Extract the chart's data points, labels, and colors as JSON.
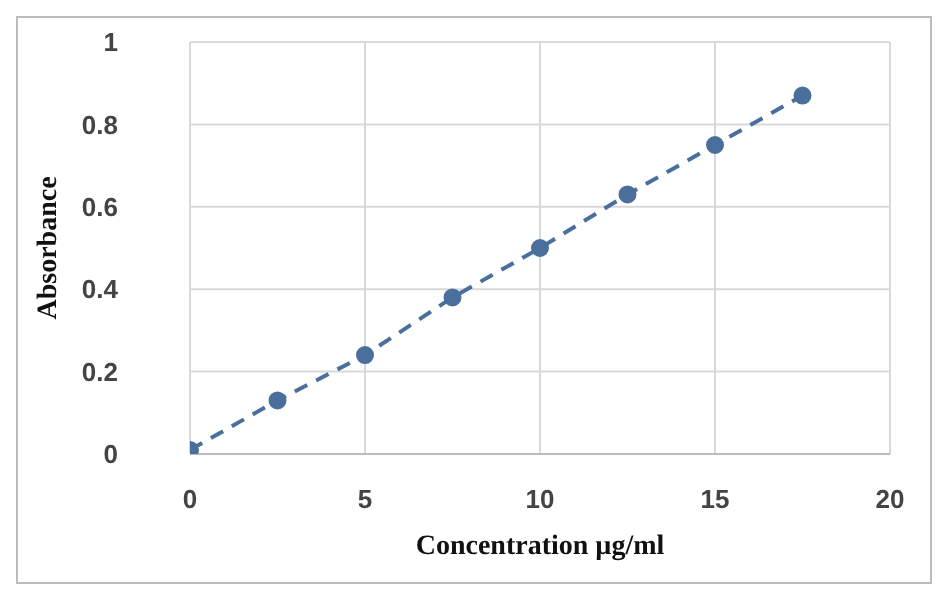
{
  "chart_data": {
    "type": "line",
    "xlabel": "Concentration µg/ml",
    "ylabel": "Absorbance",
    "x": [
      0,
      2.5,
      5,
      7.5,
      10,
      12.5,
      15,
      17.5
    ],
    "series": [
      {
        "color": "#4a6f9c",
        "values": [
          0.01,
          0.13,
          0.24,
          0.38,
          0.5,
          0.63,
          0.75,
          0.87
        ]
      }
    ],
    "xlim": [
      0,
      20
    ],
    "xticks": [
      0,
      5,
      10,
      15,
      20
    ],
    "ylim": [
      0,
      1
    ],
    "yticks": [
      0,
      0.2,
      0.4,
      0.6,
      0.8,
      1
    ],
    "grid": true,
    "marker": "circle",
    "line_style": "dashed"
  }
}
